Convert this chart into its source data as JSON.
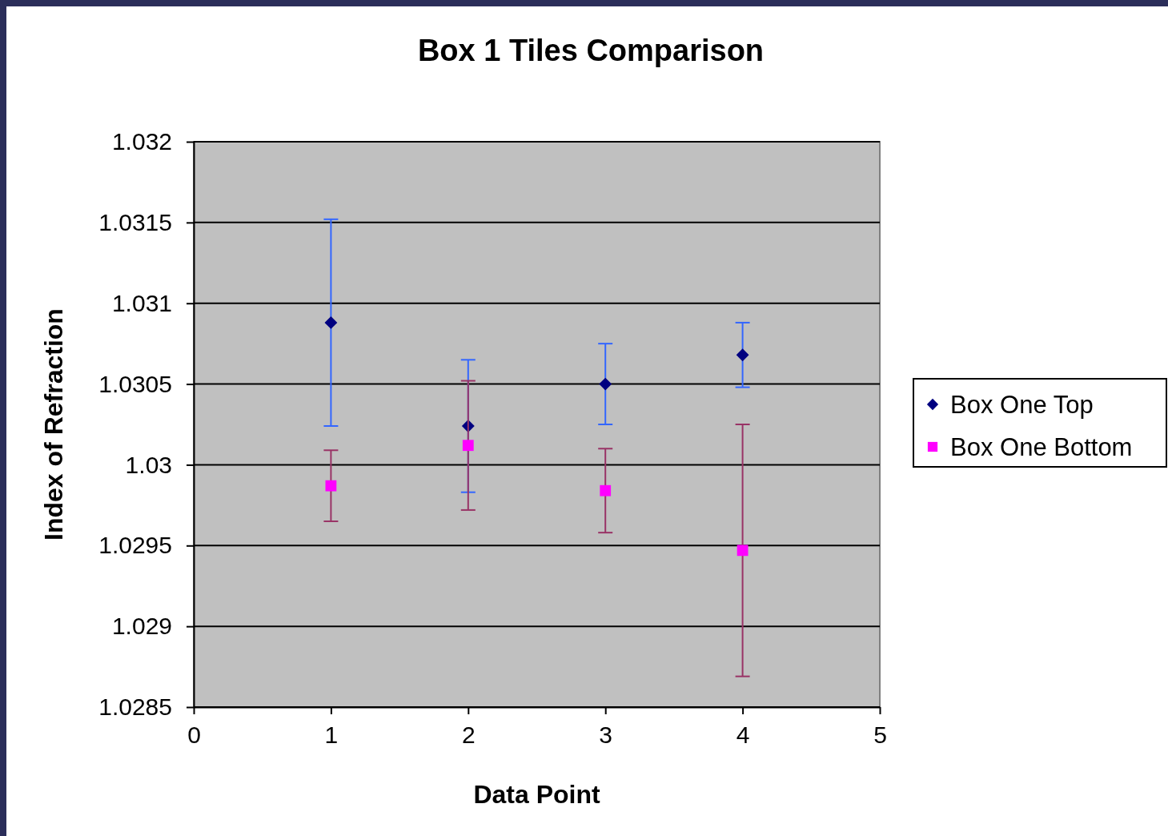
{
  "chart_data": {
    "type": "scatter",
    "title": "Box 1 Tiles Comparison",
    "xlabel": "Data Point",
    "ylabel": "Index of Refraction",
    "x": [
      1,
      2,
      3,
      4
    ],
    "series": [
      {
        "name": "Box One Top",
        "color": "#000080",
        "marker": "diamond",
        "values": [
          1.03088,
          1.03024,
          1.0305,
          1.03068
        ],
        "errors": [
          0.00064,
          0.00041,
          0.00025,
          0.0002
        ]
      },
      {
        "name": "Box One Bottom",
        "color": "#ff00ff",
        "marker": "square",
        "values": [
          1.02987,
          1.03012,
          1.02984,
          1.02947
        ],
        "errors": [
          0.00022,
          0.0004,
          0.00026,
          0.00078
        ]
      }
    ],
    "xlim": [
      0,
      5
    ],
    "xticks": [
      0,
      1,
      2,
      3,
      4,
      5
    ],
    "ylim": [
      1.0285,
      1.032
    ],
    "yticks": [
      1.0285,
      1.029,
      1.0295,
      1.03,
      1.0305,
      1.031,
      1.0315,
      1.032
    ],
    "grid": "y",
    "legend": "right"
  }
}
